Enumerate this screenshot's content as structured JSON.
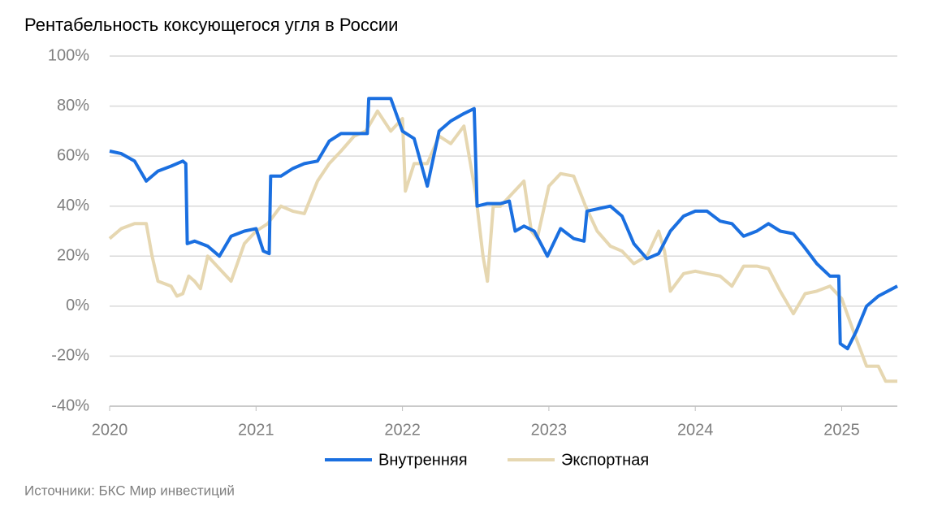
{
  "chart_data": {
    "type": "line",
    "title": "Рентабельность коксующегося угля в России",
    "source": "Источники: БКС Мир инвестиций",
    "xlim": [
      2020,
      2025.38
    ],
    "xticks": [
      2020,
      2021,
      2022,
      2023,
      2024,
      2025
    ],
    "ylim": [
      -40,
      100
    ],
    "yticks": [
      {
        "value": -40,
        "label": "-40%"
      },
      {
        "value": -20,
        "label": "-20%"
      },
      {
        "value": 0,
        "label": "0%"
      },
      {
        "value": 20,
        "label": "20%"
      },
      {
        "value": 40,
        "label": "40%"
      },
      {
        "value": 60,
        "label": "60%"
      },
      {
        "value": 80,
        "label": "80%"
      },
      {
        "value": 100,
        "label": "100%"
      }
    ],
    "grid": true,
    "legend": "bottom",
    "series": [
      {
        "name": "Внутренняя",
        "color": "#1a6fe0",
        "x": [
          2020.0,
          2020.08,
          2020.17,
          2020.25,
          2020.33,
          2020.42,
          2020.5,
          2020.52,
          2020.53,
          2020.58,
          2020.67,
          2020.75,
          2020.83,
          2020.92,
          2021.0,
          2021.05,
          2021.09,
          2021.1,
          2021.17,
          2021.25,
          2021.33,
          2021.42,
          2021.5,
          2021.58,
          2021.67,
          2021.76,
          2021.77,
          2021.92,
          2022.0,
          2022.08,
          2022.17,
          2022.25,
          2022.33,
          2022.42,
          2022.49,
          2022.51,
          2022.58,
          2022.67,
          2022.73,
          2022.77,
          2022.83,
          2022.9,
          2022.99,
          2023.08,
          2023.17,
          2023.24,
          2023.26,
          2023.42,
          2023.5,
          2023.58,
          2023.67,
          2023.75,
          2023.83,
          2023.92,
          2024.0,
          2024.08,
          2024.17,
          2024.25,
          2024.33,
          2024.42,
          2024.5,
          2024.58,
          2024.67,
          2024.74,
          2024.83,
          2024.92,
          2024.98,
          2024.99,
          2025.04,
          2025.1,
          2025.17,
          2025.25,
          2025.38
        ],
        "values": [
          62,
          61,
          58,
          50,
          54,
          56,
          58,
          57,
          25,
          26,
          24,
          20,
          28,
          30,
          31,
          22,
          21,
          52,
          52,
          55,
          57,
          58,
          66,
          69,
          69,
          69,
          83,
          83,
          70,
          67,
          48,
          70,
          74,
          77,
          79,
          40,
          41,
          41,
          42,
          30,
          32,
          30,
          20,
          31,
          27,
          26,
          38,
          40,
          36,
          25,
          19,
          21,
          30,
          36,
          38,
          38,
          34,
          33,
          28,
          30,
          33,
          30,
          29,
          24,
          17,
          12,
          12,
          -15,
          -17,
          -10,
          0,
          4,
          8
        ]
      },
      {
        "name": "Экспортная",
        "color": "#e6d7b1",
        "x": [
          2020.0,
          2020.08,
          2020.17,
          2020.25,
          2020.29,
          2020.33,
          2020.42,
          2020.46,
          2020.5,
          2020.54,
          2020.58,
          2020.62,
          2020.67,
          2020.75,
          2020.83,
          2020.92,
          2021.0,
          2021.08,
          2021.17,
          2021.25,
          2021.33,
          2021.42,
          2021.5,
          2021.58,
          2021.67,
          2021.75,
          2021.83,
          2021.92,
          2022.0,
          2022.02,
          2022.08,
          2022.17,
          2022.25,
          2022.33,
          2022.42,
          2022.5,
          2022.55,
          2022.58,
          2022.62,
          2022.67,
          2022.75,
          2022.83,
          2022.88,
          2022.92,
          2023.0,
          2023.08,
          2023.17,
          2023.25,
          2023.33,
          2023.42,
          2023.5,
          2023.58,
          2023.67,
          2023.75,
          2023.79,
          2023.83,
          2023.92,
          2024.0,
          2024.08,
          2024.17,
          2024.25,
          2024.33,
          2024.42,
          2024.5,
          2024.58,
          2024.67,
          2024.75,
          2024.83,
          2024.92,
          2025.0,
          2025.08,
          2025.17,
          2025.25,
          2025.3,
          2025.38
        ],
        "values": [
          27,
          31,
          33,
          33,
          20,
          10,
          8,
          4,
          5,
          12,
          10,
          7,
          20,
          15,
          10,
          25,
          30,
          33,
          40,
          38,
          37,
          50,
          57,
          62,
          68,
          70,
          78,
          70,
          75,
          46,
          57,
          57,
          68,
          65,
          72,
          45,
          20,
          10,
          40,
          40,
          45,
          50,
          30,
          27,
          48,
          53,
          52,
          40,
          30,
          24,
          22,
          17,
          20,
          30,
          22,
          6,
          13,
          14,
          13,
          12,
          8,
          16,
          16,
          15,
          6,
          -3,
          5,
          6,
          8,
          3,
          -10,
          -24,
          -24,
          -30,
          -30
        ]
      }
    ]
  }
}
